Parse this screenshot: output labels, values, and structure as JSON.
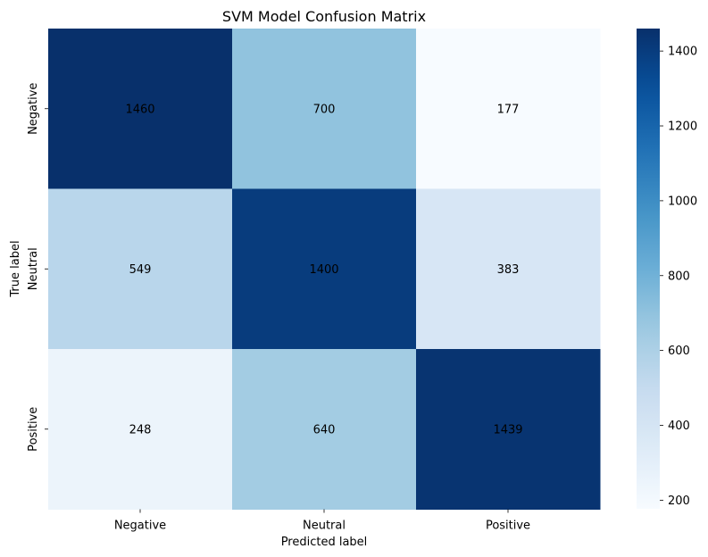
{
  "chart_data": {
    "type": "heatmap",
    "title": "SVM Model Confusion Matrix",
    "xlabel": "Predicted label",
    "ylabel": "True label",
    "x_categories": [
      "Negative",
      "Neutral",
      "Positive"
    ],
    "y_categories": [
      "Negative",
      "Neutral",
      "Positive"
    ],
    "values": [
      [
        1460,
        700,
        177
      ],
      [
        549,
        1400,
        383
      ],
      [
        248,
        640,
        1439
      ]
    ],
    "colormap": "Blues",
    "color_range": [
      177,
      1460
    ],
    "colorbar_ticks": [
      200,
      400,
      600,
      800,
      1000,
      1200,
      1400
    ],
    "grid": false
  }
}
